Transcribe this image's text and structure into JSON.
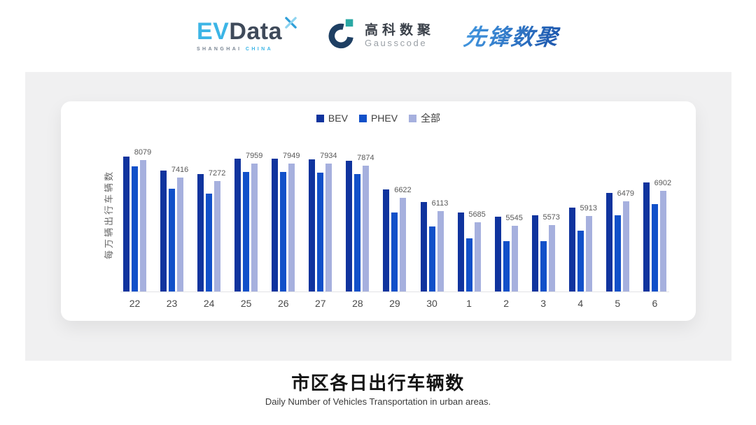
{
  "header": {
    "evdata": {
      "ev": "EV",
      "data": "Data",
      "sub_left": "SHANGHAI",
      "sub_right": "CHINA",
      "ev_color": "#3cb5e6",
      "data_color": "#3f4a5a"
    },
    "gausscode": {
      "cn": "高科数聚",
      "en": "Gausscode",
      "icon_color": "#1e3f63",
      "accent_color": "#2aa8a4"
    },
    "pioneer": {
      "text": "先锋数聚",
      "color_from": "#4398e0",
      "color_to": "#1e57ad"
    }
  },
  "chart": {
    "ylabel": "每万辆出行车辆数"
  },
  "chart_data": {
    "type": "bar",
    "title": "市区各日出行车辆数",
    "categories": [
      "22",
      "23",
      "24",
      "25",
      "26",
      "27",
      "28",
      "29",
      "30",
      "1",
      "2",
      "3",
      "4",
      "5",
      "6"
    ],
    "series": [
      {
        "name": "BEV",
        "color": "#10349e",
        "values": [
          8215,
          7675,
          7550,
          8135,
          8125,
          8120,
          8060,
          6940,
          6465,
          6055,
          5900,
          5945,
          6245,
          6800,
          7225
        ]
      },
      {
        "name": "PHEV",
        "color": "#1150c9",
        "values": [
          7835,
          6980,
          6785,
          7630,
          7610,
          7585,
          7545,
          6055,
          5515,
          5045,
          4940,
          4955,
          5345,
          5945,
          6370
        ]
      },
      {
        "name": "全部",
        "color": "#a6b0de",
        "values": [
          8079,
          7416,
          7272,
          7959,
          7949,
          7934,
          7874,
          6622,
          6113,
          5685,
          5545,
          5573,
          5913,
          6479,
          6902
        ]
      }
    ],
    "value_labels": [
      "8079",
      "7416",
      "7272",
      "7959",
      "7949",
      "7934",
      "7874",
      "6622",
      "6113",
      "5685",
      "5545",
      "5573",
      "5913",
      "6479",
      "6902"
    ],
    "value_labels_series": "全部",
    "estimated_series": [
      "BEV",
      "PHEV"
    ],
    "ylabel": "每万辆出行车辆数",
    "xlabel": "",
    "ylim": [
      3000,
      9000
    ],
    "grid": false,
    "legend_position": "top",
    "axis_line_color": "#e3e3e6"
  },
  "footer": {
    "title": "市区各日出行车辆数",
    "subtitle": "Daily Number of Vehicles Transportation in urban areas."
  }
}
